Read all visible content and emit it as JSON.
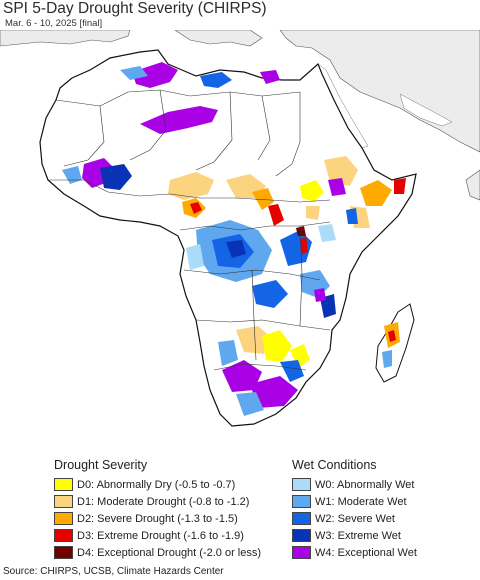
{
  "title": "SPI 5-Day Drought Severity (CHIRPS)",
  "subtitle": "Mar. 6 - 10, 2025 [final]",
  "colors": {
    "ocean": "#ffffff",
    "land_africa": "#ffffff",
    "land_other": "#ececec",
    "border": "#222222"
  },
  "legend_drought": {
    "title": "Drought Severity",
    "items": [
      {
        "label": "D0: Abnormally Dry (-0.5 to -0.7)",
        "color": "#ffff00"
      },
      {
        "label": "D1: Moderate Drought (-0.8 to -1.2)",
        "color": "#fcd37f"
      },
      {
        "label": "D2: Severe Drought (-1.3 to -1.5)",
        "color": "#ffaa00"
      },
      {
        "label": "D3: Extreme Drought (-1.6 to -1.9)",
        "color": "#e60000"
      },
      {
        "label": "D4: Exceptional Drought (-2.0 or less)",
        "color": "#730000"
      }
    ]
  },
  "legend_wet": {
    "title": "Wet Conditions",
    "items": [
      {
        "label": "W0: Abnormally Wet",
        "color": "#aadcfa"
      },
      {
        "label": "W1: Moderate Wet",
        "color": "#5fa8f0"
      },
      {
        "label": "W2: Severe Wet",
        "color": "#1464e6"
      },
      {
        "label": "W3: Extreme Wet",
        "color": "#0a32b4"
      },
      {
        "label": "W4: Exceptional Wet",
        "color": "#aa00e6"
      }
    ]
  },
  "source": "Source: CHIRPS, UCSB, Climate Hazards Center"
}
